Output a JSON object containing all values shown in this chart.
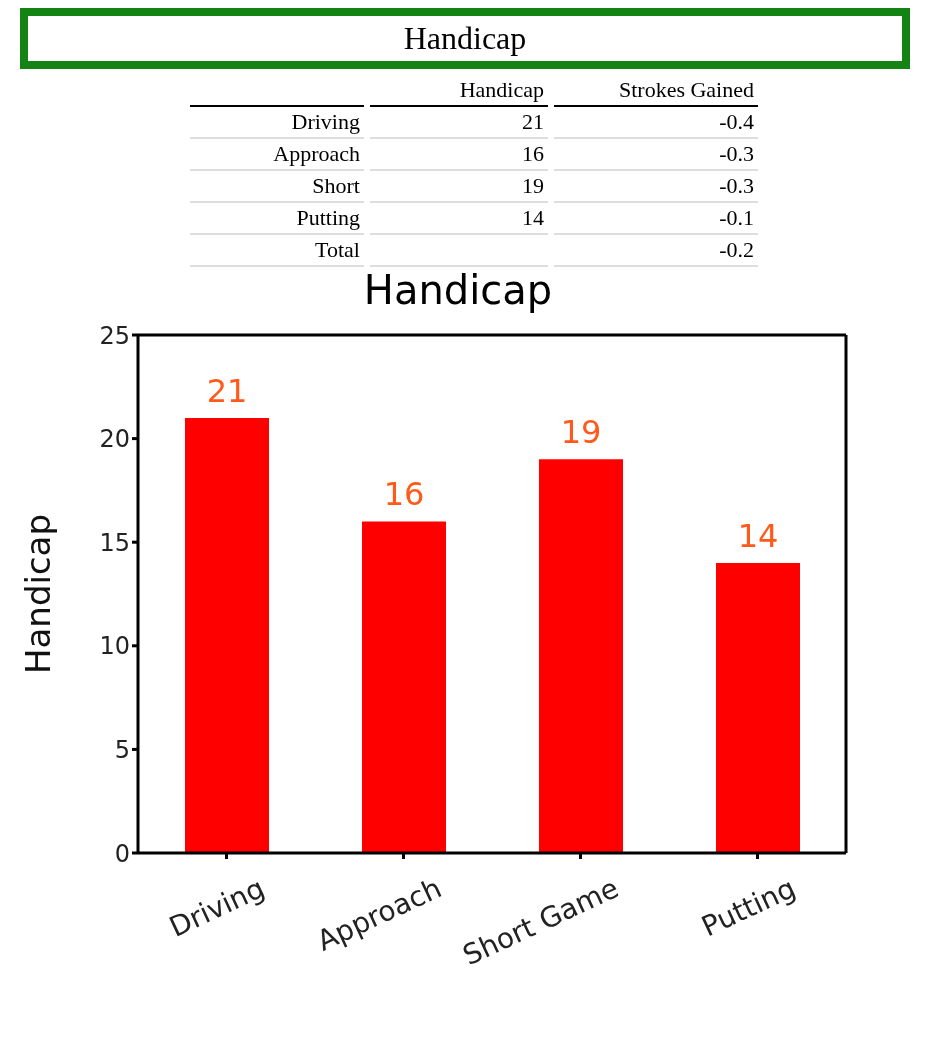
{
  "chart_data": [
    {
      "type": "other",
      "title": "Handicap",
      "categories": [
        "Driving",
        "Approach",
        "Short",
        "Putting",
        "Total"
      ],
      "series": [
        {
          "name": "Handicap",
          "values": [
            21,
            16,
            19,
            14,
            null
          ]
        },
        {
          "name": "Strokes Gained",
          "values": [
            -0.4,
            -0.3,
            -0.3,
            -0.1,
            -0.2
          ]
        }
      ],
      "data_labels": true
    },
    {
      "type": "bar",
      "title": "Handicap",
      "ylabel": "Handicap",
      "categories": [
        "Driving",
        "Approach",
        "Short Game",
        "Putting"
      ],
      "values": [
        21,
        16,
        19,
        14
      ],
      "color": "#ff0000",
      "ylim": [
        0,
        25
      ],
      "yticks": [
        0,
        5,
        10,
        15,
        20,
        25
      ],
      "grid": false,
      "data_labels": true
    }
  ]
}
